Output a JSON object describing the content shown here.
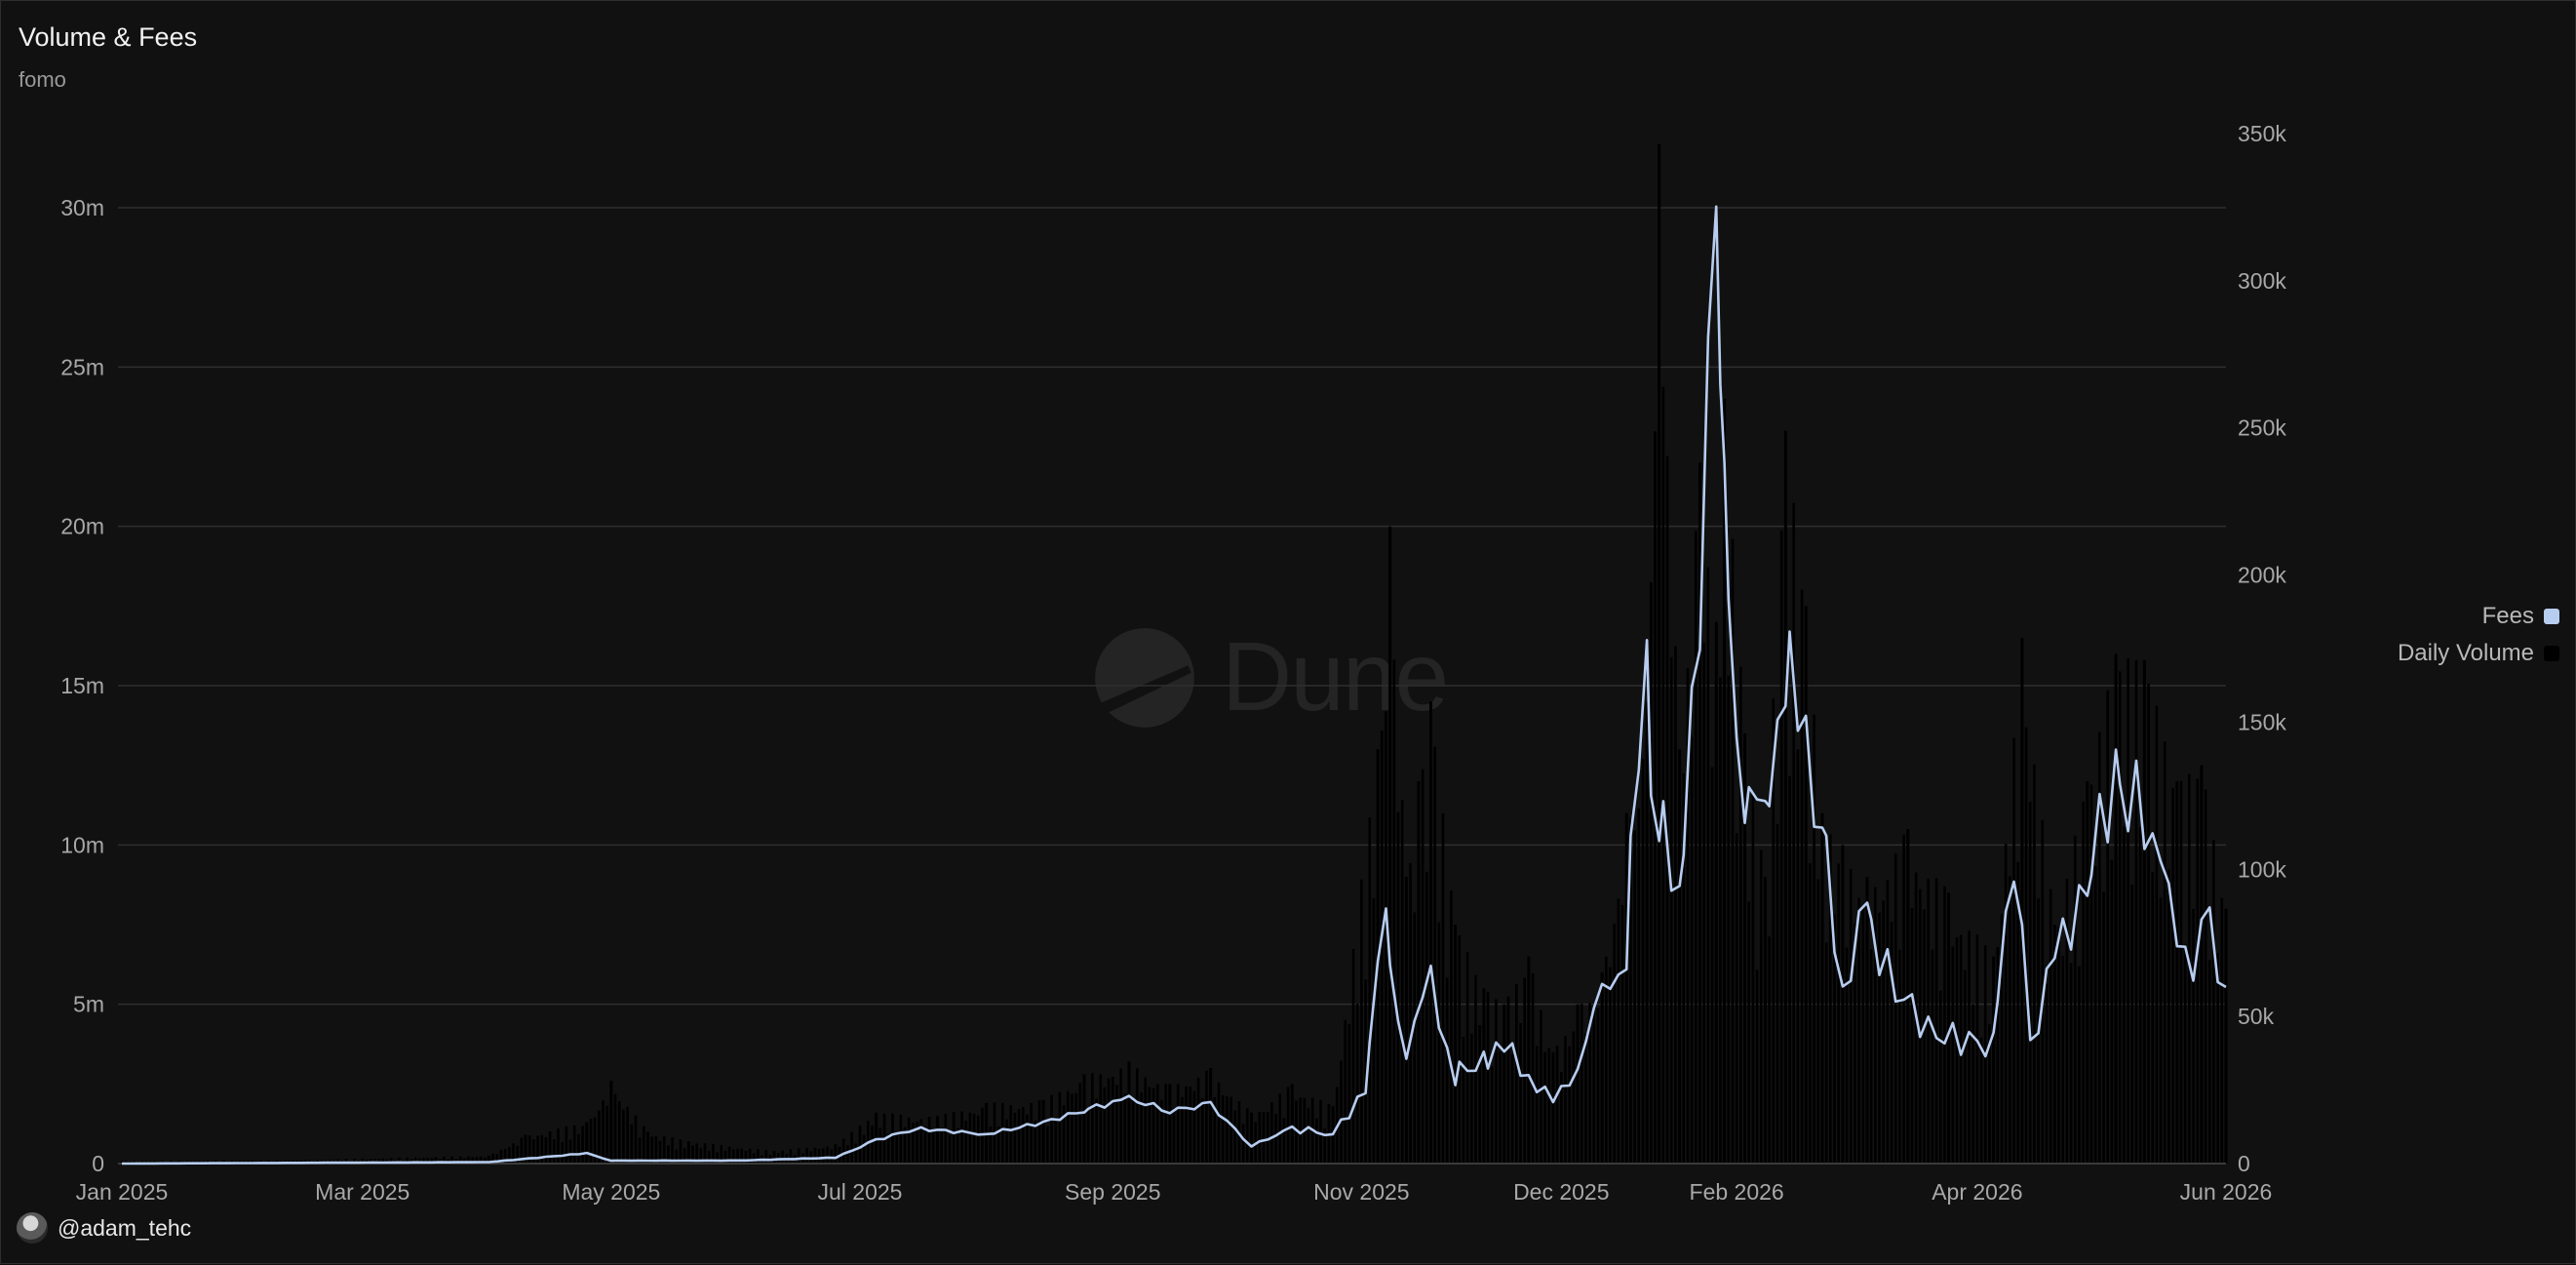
{
  "header": {
    "title": "Volume & Fees",
    "subtitle": "fomo"
  },
  "watermark": {
    "text": "Dune"
  },
  "author": {
    "handle": "@adam_tehc"
  },
  "legend": [
    {
      "label": "Fees",
      "color": "#b7cdf0"
    },
    {
      "label": "Daily Volume",
      "color": "#000000"
    }
  ],
  "chart_data": {
    "type": "bar+line",
    "title": "Volume & Fees",
    "subtitle": "fomo",
    "x_ticks": [
      "Jan 2025",
      "Mar 2025",
      "May 2025",
      "Jul 2025",
      "Sep 2025",
      "Nov 2025",
      "Dec 2025",
      "Feb 2026",
      "Apr 2026",
      "Jun 2026"
    ],
    "x_range": [
      "2025-01-01",
      "2026-06-01"
    ],
    "y_left": {
      "ticks": [
        "0",
        "5m",
        "10m",
        "15m",
        "20m",
        "25m",
        "30m"
      ],
      "min": 0,
      "max": 30000000
    },
    "y_right": {
      "ticks": [
        "0",
        "50k",
        "100k",
        "150k",
        "200k",
        "250k",
        "300k",
        "350k"
      ],
      "min": 0,
      "max": 350000
    },
    "grid": true,
    "legend_position": "right",
    "series": [
      {
        "name": "Daily Volume",
        "type": "bar",
        "axis": "left",
        "color": "#000000",
        "points": [
          [
            "2025-01-01",
            0.08
          ],
          [
            "2025-02-15",
            0.12
          ],
          [
            "2025-04-01",
            0.25
          ],
          [
            "2025-04-10",
            0.9
          ],
          [
            "2025-04-25",
            1.3
          ],
          [
            "2025-05-01",
            2.6
          ],
          [
            "2025-05-10",
            1.0
          ],
          [
            "2025-05-20",
            0.7
          ],
          [
            "2025-06-10",
            0.4
          ],
          [
            "2025-06-25",
            0.6
          ],
          [
            "2025-07-05",
            1.6
          ],
          [
            "2025-07-20",
            1.5
          ],
          [
            "2025-08-01",
            1.9
          ],
          [
            "2025-08-15",
            2.0
          ],
          [
            "2025-08-25",
            2.8
          ],
          [
            "2025-09-05",
            3.2
          ],
          [
            "2025-09-15",
            2.5
          ],
          [
            "2025-09-25",
            3.0
          ],
          [
            "2025-10-05",
            1.6
          ],
          [
            "2025-10-15",
            2.5
          ],
          [
            "2025-10-25",
            1.8
          ],
          [
            "2025-11-05",
            13.0
          ],
          [
            "2025-11-08",
            20.0
          ],
          [
            "2025-11-12",
            9.0
          ],
          [
            "2025-11-15",
            12.0
          ],
          [
            "2025-11-18",
            14.5
          ],
          [
            "2025-11-24",
            7.5
          ],
          [
            "2025-12-01",
            5.5
          ],
          [
            "2025-12-06",
            5.0
          ],
          [
            "2025-12-12",
            6.5
          ],
          [
            "2025-12-18",
            3.5
          ],
          [
            "2025-12-24",
            5.0
          ],
          [
            "2025-12-30",
            6.0
          ],
          [
            "2026-01-05",
            11.0
          ],
          [
            "2026-01-10",
            14.5
          ],
          [
            "2026-01-13",
            32.0
          ],
          [
            "2026-01-18",
            13.0
          ],
          [
            "2026-01-23",
            22.0
          ],
          [
            "2026-01-27",
            17.0
          ],
          [
            "2026-01-29",
            24.0
          ],
          [
            "2026-02-03",
            13.5
          ],
          [
            "2026-02-08",
            9.0
          ],
          [
            "2026-02-13",
            23.0
          ],
          [
            "2026-02-18",
            17.5
          ],
          [
            "2026-02-22",
            11.0
          ],
          [
            "2026-02-27",
            10.0
          ],
          [
            "2026-03-05",
            9.0
          ],
          [
            "2026-03-15",
            10.5
          ],
          [
            "2026-03-25",
            8.5
          ],
          [
            "2026-04-05",
            6.5
          ],
          [
            "2026-04-12",
            16.5
          ],
          [
            "2026-04-20",
            7.5
          ],
          [
            "2026-04-28",
            12.0
          ],
          [
            "2026-05-05",
            16.0
          ],
          [
            "2026-05-12",
            15.8
          ],
          [
            "2026-05-20",
            12.0
          ],
          [
            "2026-05-26",
            12.5
          ],
          [
            "2026-06-01",
            8.0
          ]
        ],
        "unit": "millions"
      },
      {
        "name": "Fees",
        "type": "line",
        "axis": "right",
        "color": "#b7cdf0",
        "points": [
          [
            "2025-01-01",
            0
          ],
          [
            "2025-04-01",
            500
          ],
          [
            "2025-04-25",
            3500
          ],
          [
            "2025-05-01",
            1000
          ],
          [
            "2025-06-01",
            1000
          ],
          [
            "2025-06-25",
            2000
          ],
          [
            "2025-07-05",
            8000
          ],
          [
            "2025-07-15",
            12000
          ],
          [
            "2025-08-01",
            10000
          ],
          [
            "2025-08-15",
            14000
          ],
          [
            "2025-08-25",
            18000
          ],
          [
            "2025-09-05",
            22000
          ],
          [
            "2025-09-15",
            18000
          ],
          [
            "2025-09-25",
            20000
          ],
          [
            "2025-10-05",
            6000
          ],
          [
            "2025-10-15",
            12000
          ],
          [
            "2025-10-25",
            10000
          ],
          [
            "2025-11-02",
            25000
          ],
          [
            "2025-11-07",
            80000
          ],
          [
            "2025-11-12",
            40000
          ],
          [
            "2025-11-18",
            60000
          ],
          [
            "2025-11-24",
            30000
          ],
          [
            "2025-12-01",
            35000
          ],
          [
            "2025-12-06",
            40000
          ],
          [
            "2025-12-12",
            30000
          ],
          [
            "2025-12-18",
            20000
          ],
          [
            "2025-12-24",
            35000
          ],
          [
            "2025-12-30",
            55000
          ],
          [
            "2026-01-05",
            75000
          ],
          [
            "2026-01-10",
            160000
          ],
          [
            "2026-01-13",
            120000
          ],
          [
            "2026-01-18",
            90000
          ],
          [
            "2026-01-23",
            175000
          ],
          [
            "2026-01-27",
            340000
          ],
          [
            "2026-01-29",
            220000
          ],
          [
            "2026-02-03",
            130000
          ],
          [
            "2026-02-08",
            110000
          ],
          [
            "2026-02-13",
            175000
          ],
          [
            "2026-02-18",
            140000
          ],
          [
            "2026-02-22",
            120000
          ],
          [
            "2026-02-27",
            60000
          ],
          [
            "2026-03-05",
            85000
          ],
          [
            "2026-03-12",
            60000
          ],
          [
            "2026-03-20",
            45000
          ],
          [
            "2026-03-28",
            42000
          ],
          [
            "2026-04-05",
            40000
          ],
          [
            "2026-04-10",
            105000
          ],
          [
            "2026-04-14",
            40000
          ],
          [
            "2026-04-20",
            70000
          ],
          [
            "2026-04-28",
            95000
          ],
          [
            "2026-05-05",
            130000
          ],
          [
            "2026-05-12",
            120000
          ],
          [
            "2026-05-18",
            85000
          ],
          [
            "2026-05-24",
            70000
          ],
          [
            "2026-05-28",
            80000
          ],
          [
            "2026-06-01",
            60000
          ]
        ]
      }
    ]
  }
}
